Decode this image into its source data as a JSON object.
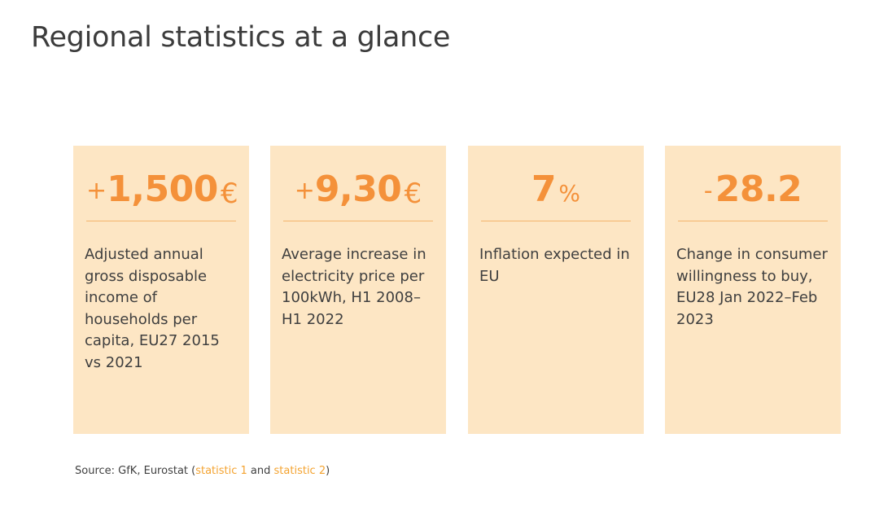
{
  "title": "Regional statistics at a glance",
  "accent_color": "#f4913a",
  "card_background": "#fde6c4",
  "cards": [
    {
      "prefix": "+",
      "value": "1,500",
      "unit": "€",
      "description": "Adjusted annual gross disposable income of households per capita, EU27 2015 vs 2021"
    },
    {
      "prefix": "+",
      "value": "9,30",
      "unit": "€",
      "description": "Average increase in electricity price per 100kWh, H1 2008–H1 2022"
    },
    {
      "prefix": "",
      "value": "7",
      "unit": "%",
      "description": "Inflation expected in EU"
    },
    {
      "prefix": "-",
      "value": "28.2",
      "unit": "",
      "description": "Change in consumer willingness to buy, EU28 Jan 2022–Feb 2023"
    }
  ],
  "source": {
    "prefix": "Source: GfK, Eurostat (",
    "link1": "statistic 1",
    "middle": " and ",
    "link2": "statistic 2",
    "suffix": ")"
  }
}
